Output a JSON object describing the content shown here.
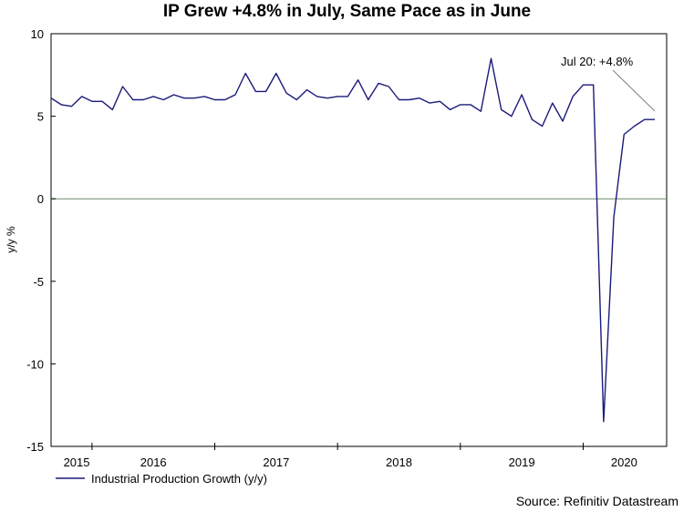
{
  "chart_data": {
    "type": "line",
    "title": "IP Grew +4.8% in July, Same Pace as in June",
    "xlabel": "",
    "ylabel": "y/y %",
    "ylim": [
      -15,
      10
    ],
    "yticks": [
      10,
      5,
      0,
      -5,
      -10,
      -15
    ],
    "ytick_labels": [
      "10",
      "5",
      "0",
      "-5",
      "-10",
      "-15"
    ],
    "x_start": "2015-01",
    "x_end": "2020-07",
    "x_tick_labels": [
      {
        "label": "2015",
        "month_index": 2.5
      },
      {
        "label": "2016",
        "month_index": 10
      },
      {
        "label": "2017",
        "month_index": 22
      },
      {
        "label": "2018",
        "month_index": 34
      },
      {
        "label": "2019",
        "month_index": 46
      },
      {
        "label": "2020",
        "month_index": 56
      }
    ],
    "year_separators": [
      4,
      16,
      28,
      40,
      52
    ],
    "series": [
      {
        "name": "Industrial Production Growth (y/y)",
        "color": "#1a1a7a",
        "values": [
          6.1,
          5.7,
          5.6,
          6.2,
          5.9,
          5.9,
          5.4,
          6.8,
          6.0,
          6.0,
          6.2,
          6.0,
          6.3,
          6.1,
          6.1,
          6.2,
          6.0,
          6.0,
          6.3,
          7.6,
          6.5,
          6.5,
          7.6,
          6.4,
          6.0,
          6.6,
          6.2,
          6.1,
          6.2,
          6.2,
          7.2,
          6.0,
          7.0,
          6.8,
          6.0,
          6.0,
          6.1,
          5.8,
          5.9,
          5.4,
          5.7,
          5.7,
          5.3,
          8.5,
          5.4,
          5.0,
          6.3,
          4.8,
          4.4,
          5.8,
          4.7,
          6.2,
          6.9,
          6.9,
          -13.5,
          -1.1,
          3.9,
          4.4,
          4.8,
          4.8
        ]
      }
    ],
    "zero_line": true,
    "annotation": "Jul 20: +4.8%",
    "legend": "bottom-left",
    "source": "Source: Refinitiv Datastream"
  }
}
